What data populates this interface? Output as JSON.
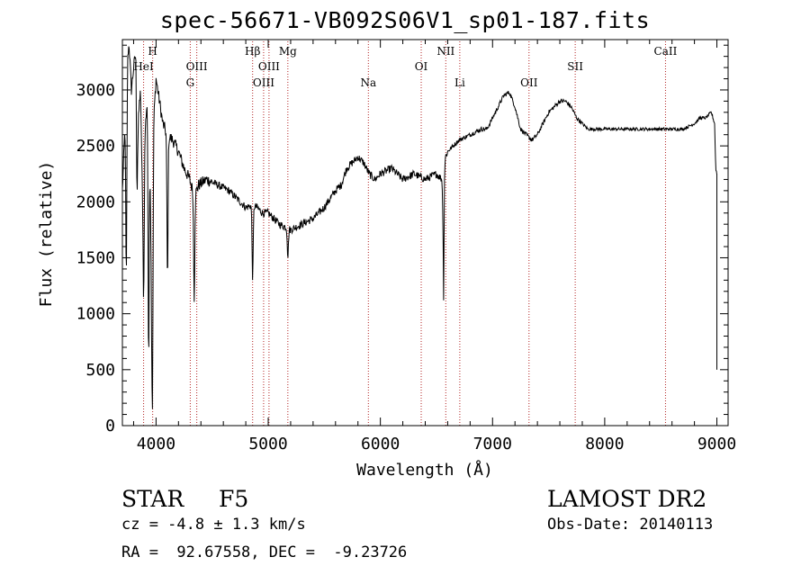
{
  "chart_data": {
    "type": "line",
    "title": "spec-56671-VB092S06V1_sp01-187.fits",
    "xlabel": "Wavelength (Å)",
    "ylabel": "Flux (relative)",
    "xlim": [
      3700,
      9100
    ],
    "ylim": [
      0,
      3450
    ],
    "xticks": [
      4000,
      5000,
      6000,
      7000,
      8000,
      9000
    ],
    "yticks": [
      0,
      500,
      1000,
      1500,
      2000,
      2500,
      3000
    ],
    "line_color": "#000000",
    "marker_color": "#b22222",
    "line_markers": [
      {
        "label": "HeI",
        "x": 3889,
        "row": 2
      },
      {
        "label": "H",
        "x": 3970,
        "row": 1
      },
      {
        "label": "OIII",
        "x": 4363,
        "row": 2
      },
      {
        "label": "G",
        "x": 4305,
        "row": 3
      },
      {
        "label": "Hβ",
        "x": 4861,
        "row": 1
      },
      {
        "label": "OIII",
        "x": 5007,
        "row": 2
      },
      {
        "label": "OIII",
        "x": 4959,
        "row": 3
      },
      {
        "label": "Mg",
        "x": 5175,
        "row": 1
      },
      {
        "label": "Na",
        "x": 5893,
        "row": 3
      },
      {
        "label": "OI",
        "x": 6364,
        "row": 2
      },
      {
        "label": "NII",
        "x": 6583,
        "row": 1
      },
      {
        "label": "Li",
        "x": 6708,
        "row": 3
      },
      {
        "label": "OII",
        "x": 7325,
        "row": 3
      },
      {
        "label": "SII",
        "x": 7737,
        "row": 2
      },
      {
        "label": "CaII",
        "x": 8542,
        "row": 1
      }
    ],
    "spectrum": {
      "x": [
        3700,
        3720,
        3740,
        3760,
        3780,
        3800,
        3820,
        3840,
        3860,
        3880,
        3900,
        3920,
        3940,
        3960,
        3980,
        4000,
        4030,
        4060,
        4100,
        4150,
        4200,
        4250,
        4300,
        4340,
        4380,
        4450,
        4550,
        4650,
        4750,
        4800,
        4860,
        4900,
        4950,
        5000,
        5050,
        5100,
        5200,
        5300,
        5400,
        5500,
        5600,
        5650,
        5700,
        5750,
        5800,
        5850,
        5900,
        5950,
        6000,
        6100,
        6200,
        6300,
        6400,
        6500,
        6550,
        6560,
        6565,
        6570,
        6580,
        6600,
        6700,
        6800,
        6900,
        6950,
        7000,
        7050,
        7100,
        7150,
        7200,
        7250,
        7300,
        7350,
        7400,
        7450,
        7500,
        7550,
        7600,
        7650,
        7700,
        7750,
        7800,
        7850,
        7900,
        8000,
        8100,
        8200,
        8300,
        8400,
        8500,
        8600,
        8700,
        8800,
        8850,
        8900,
        8950,
        8980,
        8990,
        9000
      ],
      "y": [
        2100,
        2600,
        3300,
        3400,
        3000,
        3200,
        3350,
        2700,
        3000,
        2100,
        2600,
        2900,
        2700,
        1300,
        2750,
        3100,
        2900,
        2700,
        2600,
        2550,
        2450,
        2300,
        2200,
        2050,
        2150,
        2200,
        2150,
        2100,
        2000,
        1950,
        1970,
        1950,
        1900,
        1900,
        1850,
        1800,
        1750,
        1800,
        1850,
        1950,
        2100,
        2150,
        2300,
        2350,
        2400,
        2350,
        2250,
        2200,
        2250,
        2300,
        2200,
        2250,
        2200,
        2250,
        2200,
        2150,
        1700,
        2300,
        2400,
        2450,
        2550,
        2600,
        2650,
        2650,
        2750,
        2850,
        2950,
        2980,
        2850,
        2650,
        2600,
        2550,
        2600,
        2700,
        2800,
        2850,
        2900,
        2900,
        2850,
        2750,
        2700,
        2650,
        2650,
        2650,
        2650,
        2650,
        2650,
        2650,
        2650,
        2650,
        2650,
        2700,
        2750,
        2750,
        2800,
        2700,
        2300,
        2250
      ],
      "absorption": [
        {
          "x": 3735,
          "depth": 1800
        },
        {
          "x": 3830,
          "depth": 900
        },
        {
          "x": 3890,
          "depth": 1200
        },
        {
          "x": 3934,
          "depth": 2150
        },
        {
          "x": 3968,
          "depth": 1700
        },
        {
          "x": 4102,
          "depth": 1300
        },
        {
          "x": 4340,
          "depth": 900
        },
        {
          "x": 4861,
          "depth": 650
        },
        {
          "x": 5175,
          "depth": 250
        },
        {
          "x": 6563,
          "depth": 650
        }
      ]
    },
    "grid": false,
    "legend": "none"
  },
  "info": {
    "object_class": "STAR",
    "subclass": "F5",
    "redshift": "cz = -4.8 ± 1.3 km/s",
    "coords": "RA =  92.67558, DEC =  -9.23726",
    "survey": "LAMOST DR2",
    "obs_date": "Obs-Date: 20140113"
  }
}
